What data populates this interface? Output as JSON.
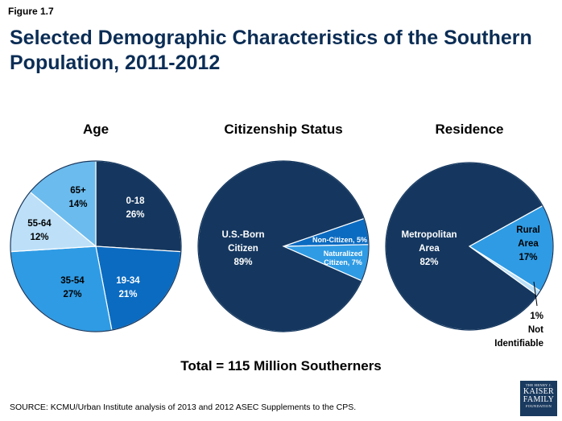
{
  "figure_label": "Figure 1.7",
  "title": "Selected Demographic Characteristics of the Southern Population, 2011-2012",
  "chart_data": [
    {
      "type": "pie",
      "title": "Age",
      "slices": [
        {
          "label": "0-18",
          "value": 26,
          "value_label": "26%",
          "color": "#15375f"
        },
        {
          "label": "19-34",
          "value": 21,
          "value_label": "21%",
          "color": "#0b6bc1"
        },
        {
          "label": "35-54",
          "value": 27,
          "value_label": "27%",
          "color": "#2f9be4"
        },
        {
          "label": "55-64",
          "value": 12,
          "value_label": "12%",
          "color": "#bde0f8"
        },
        {
          "label": "65+",
          "value": 14,
          "value_label": "14%",
          "color": "#6bbbee"
        }
      ]
    },
    {
      "type": "pie",
      "title": "Citizenship Status",
      "slices": [
        {
          "label": "Non-Citizen, 5%",
          "value": 5,
          "value_label": "",
          "color": "#0b6bc1"
        },
        {
          "label": "Naturalized Citizen, 7%",
          "value": 7,
          "value_label": "",
          "color": "#2f9be4"
        },
        {
          "label": "U.S.-Born Citizen",
          "value": 89,
          "value_label": "89%",
          "color": "#15375f"
        }
      ]
    },
    {
      "type": "pie",
      "title": "Residence",
      "slices": [
        {
          "label": "Rural Area",
          "value": 17,
          "value_label": "17%",
          "color": "#2f9be4"
        },
        {
          "label": "Not Identifiable",
          "value": 1,
          "value_label": "1%",
          "color": "#bde0f8"
        },
        {
          "label": "Metropolitan Area",
          "value": 82,
          "value_label": "82%",
          "color": "#15375f"
        }
      ]
    }
  ],
  "total": "Total = 115 Million Southerners",
  "source": "SOURCE: KCMU/Urban Institute analysis of 2013 and 2012 ASEC Supplements to the CPS.",
  "logo": {
    "line1": "THE HENRY J.",
    "line2": "KAISER",
    "line3": "FAMILY",
    "line4": "FOUNDATION"
  }
}
